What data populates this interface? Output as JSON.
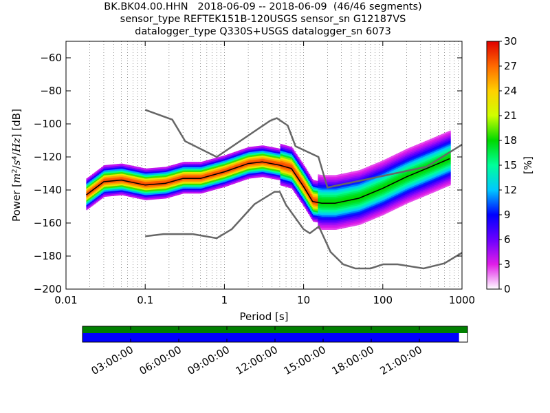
{
  "header": {
    "line1": "BK.BK04.00.HHN   2018-06-09 -- 2018-06-09  (46/46 segments)",
    "line2": "sensor_type REFTEK151B-120USGS sensor_sn G12187VS",
    "line3": "datalogger_type Q330S+USGS datalogger_sn 6073"
  },
  "chart_data": {
    "type": "heatmap",
    "title": "BK.BK04.00.HHN   2018-06-09 -- 2018-06-09  (46/46 segments)",
    "xlabel": "Period [s]",
    "ylabel": "Power [m²/s⁴/Hz] [dB]",
    "xscale": "log",
    "xlim": [
      0.01,
      1000
    ],
    "ylim": [
      -200,
      -50
    ],
    "x_ticks": [
      0.01,
      0.1,
      1,
      10,
      100,
      1000
    ],
    "x_tick_labels": [
      "0.01",
      "0.1",
      "1",
      "10",
      "100",
      "1000"
    ],
    "y_ticks": [
      -200,
      -180,
      -160,
      -140,
      -120,
      -100,
      -80,
      -60
    ],
    "y_tick_labels": [
      "−200",
      "−180",
      "−160",
      "−140",
      "−120",
      "−100",
      "−80",
      "−60"
    ],
    "grid": "dotted vertical at log-period steps",
    "colorbar": {
      "label": "[%]",
      "range": [
        0,
        30
      ],
      "ticks": [
        0,
        3,
        6,
        9,
        12,
        15,
        18,
        21,
        24,
        27,
        30
      ],
      "tick_labels": [
        "0",
        "3",
        "6",
        "9",
        "12",
        "15",
        "18",
        "21",
        "24",
        "27",
        "30"
      ],
      "colors": [
        "#ffffff",
        "#e01ee8",
        "#6a00ff",
        "#0000ff",
        "#00c8ff",
        "#00ff9a",
        "#00d800",
        "#cfff00",
        "#ffd000",
        "#ff6a00",
        "#e00000"
      ]
    },
    "series": [
      {
        "name": "NHNM",
        "color": "#666666",
        "x": [
          0.1,
          0.22,
          0.32,
          0.8,
          3.8,
          4.6,
          6.3,
          7.9,
          15.4,
          20,
          354.8,
          1000
        ],
        "y": [
          -91.5,
          -97.4,
          -110.5,
          -120,
          -98,
          -96.5,
          -101,
          -113.5,
          -120,
          -138.5,
          -126,
          -112.5
        ]
      },
      {
        "name": "NLNM",
        "color": "#666666",
        "x": [
          0.1,
          0.17,
          0.4,
          0.8,
          1.24,
          2.4,
          4.3,
          5,
          6,
          10,
          12,
          15.6,
          21.9,
          31.6,
          45,
          70,
          101,
          154,
          328,
          600,
          1000
        ],
        "y": [
          -168,
          -166.7,
          -166.7,
          -169.2,
          -163.7,
          -148.6,
          -141.1,
          -141.1,
          -149,
          -163.8,
          -166.2,
          -162.1,
          -177.5,
          -185,
          -187.5,
          -187.5,
          -185,
          -185,
          -187.5,
          -184.4,
          -178
        ]
      },
      {
        "name": "mode",
        "color": "#000000",
        "x": [
          0.018,
          0.03,
          0.05,
          0.1,
          0.18,
          0.3,
          0.5,
          1,
          2,
          3,
          5,
          7,
          10,
          13,
          17,
          25,
          50,
          100,
          200,
          400,
          700
        ],
        "y": [
          -143,
          -135,
          -134,
          -137,
          -136,
          -133,
          -133,
          -129,
          -124,
          -123,
          -125,
          -127,
          -138,
          -147,
          -148,
          -148,
          -145,
          -139,
          -132,
          -126,
          -121
        ]
      }
    ],
    "availability": {
      "tick_labels": [
        "03:00:00",
        "06:00:00",
        "09:00:00",
        "12:00:00",
        "15:00:00",
        "18:00:00",
        "21:00:00"
      ],
      "top_color": "#008000",
      "bottom_color": "#0000ff",
      "coverage_fraction": 0.978
    }
  }
}
